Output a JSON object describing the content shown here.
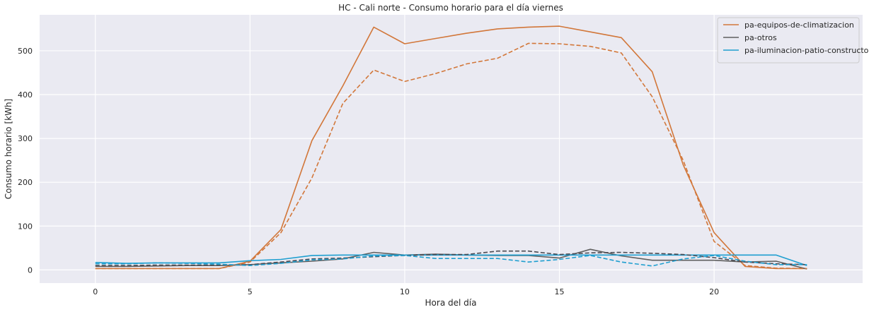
{
  "chart_data": {
    "type": "line",
    "title": "HC - Cali norte - Consumo horario para el día viernes",
    "xlabel": "Hora del día",
    "ylabel": "Consumo horario [kWh]",
    "xlim": [
      -1.8,
      24.8
    ],
    "ylim": [
      -30,
      582
    ],
    "xticks": [
      0,
      5,
      10,
      15,
      20
    ],
    "yticks": [
      0,
      100,
      200,
      300,
      400,
      500
    ],
    "grid": true,
    "legend_position": "top-right",
    "x": [
      0,
      1,
      2,
      3,
      4,
      5,
      6,
      7,
      8,
      9,
      10,
      11,
      12,
      13,
      14,
      15,
      16,
      17,
      18,
      19,
      20,
      21,
      22,
      23
    ],
    "series": [
      {
        "name": "pa-equipos-de-climatizacion",
        "color": "#d2773a",
        "style": "solid",
        "values": [
          3,
          3,
          3,
          3,
          3,
          20,
          92,
          295,
          420,
          554,
          516,
          528,
          540,
          550,
          554,
          556,
          543,
          530,
          452,
          240,
          85,
          8,
          3,
          3
        ]
      },
      {
        "name": "pa-otros",
        "color": "#5f5f5f",
        "style": "solid",
        "values": [
          8,
          8,
          9,
          10,
          10,
          12,
          16,
          20,
          25,
          40,
          34,
          36,
          34,
          33,
          33,
          27,
          47,
          32,
          22,
          22,
          22,
          18,
          20,
          2
        ]
      },
      {
        "name": "pa-iluminacion-patio-constructor",
        "color": "#1f9fd0",
        "style": "solid",
        "values": [
          17,
          15,
          16,
          16,
          16,
          21,
          24,
          33,
          34,
          34,
          34,
          34,
          34,
          34,
          34,
          34,
          34,
          34,
          34,
          34,
          34,
          34,
          34,
          10
        ]
      },
      {
        "name": "",
        "color": "#d2773a",
        "style": "dashed",
        "values": [
          3,
          3,
          3,
          3,
          3,
          18,
          85,
          210,
          380,
          456,
          430,
          448,
          470,
          483,
          517,
          516,
          510,
          495,
          395,
          250,
          65,
          10,
          4,
          3
        ]
      },
      {
        "name": "",
        "color": "#4a4a52",
        "style": "dashed",
        "values": [
          10,
          10,
          11,
          11,
          11,
          12,
          18,
          25,
          27,
          30,
          33,
          35,
          35,
          43,
          43,
          35,
          39,
          40,
          38,
          35,
          28,
          18,
          14,
          12
        ]
      },
      {
        "name": "",
        "color": "#1f9fd0",
        "style": "dashed",
        "values": [
          14,
          14,
          16,
          15,
          13,
          10,
          15,
          23,
          25,
          32,
          33,
          26,
          26,
          26,
          18,
          24,
          33,
          18,
          9,
          25,
          33,
          20,
          12,
          12
        ]
      }
    ]
  }
}
